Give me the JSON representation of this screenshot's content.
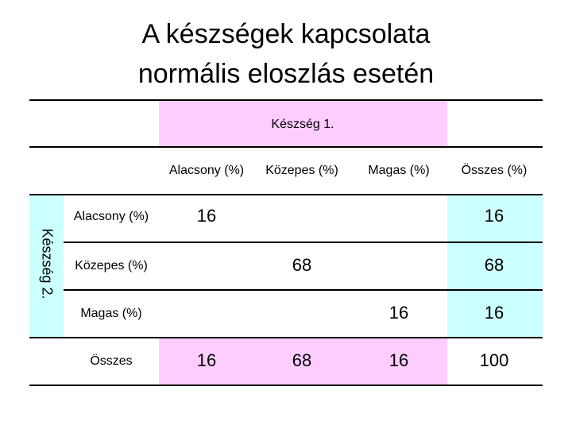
{
  "header": {
    "title_lines": [
      "A készségek kapcsolata",
      "normális eloszlás esetén"
    ]
  },
  "table": {
    "column_group": "Készség 1.",
    "row_group": "Készség 2.",
    "columns": [
      "Alacsony (%)",
      "Közepes (%)",
      "Magas (%)",
      "Összes (%)"
    ],
    "rows": [
      {
        "label": "Alacsony (%)",
        "cells": [
          16,
          null,
          null,
          16
        ]
      },
      {
        "label": "Közepes (%)",
        "cells": [
          null,
          68,
          null,
          68
        ]
      },
      {
        "label": "Magas (%)",
        "cells": [
          null,
          null,
          16,
          16
        ]
      },
      {
        "label": "Összes",
        "cells": [
          16,
          68,
          16,
          100
        ]
      }
    ]
  }
}
